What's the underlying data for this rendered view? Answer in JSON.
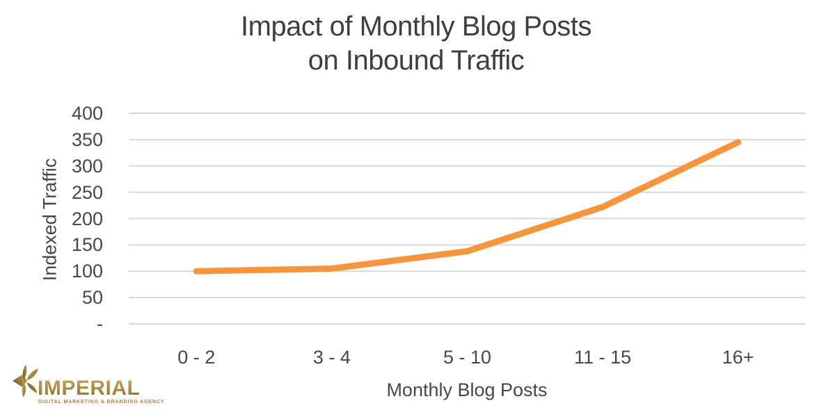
{
  "chart_data": {
    "type": "line",
    "title_line1": "Impact of Monthly Blog Posts",
    "title_line2": "on Inbound Traffic",
    "categories": [
      "0 - 2",
      "3 - 4",
      "5 - 10",
      "11 - 15",
      "16+"
    ],
    "series": [
      {
        "name": "Indexed Traffic",
        "values": [
          100,
          105,
          138,
          222,
          345
        ],
        "color": "#F6953C"
      }
    ],
    "xlabel": "Monthly Blog Posts",
    "ylabel": "Indexed Traffic",
    "ylim": [
      0,
      400
    ],
    "y_ticks": [
      {
        "label": "400",
        "value": 400
      },
      {
        "label": "350",
        "value": 350
      },
      {
        "label": "300",
        "value": 300
      },
      {
        "label": "250",
        "value": 250
      },
      {
        "label": "200",
        "value": 200
      },
      {
        "label": "150",
        "value": 150
      },
      {
        "label": "100",
        "value": 100
      },
      {
        "label": "50",
        "value": 50
      },
      {
        "label": "-",
        "value": 0
      }
    ],
    "grid": true,
    "gridline_color": "#d9d9d9",
    "legend_position": "none",
    "line_width": 9
  },
  "logo": {
    "name": "IMPERIAL",
    "tagline": "DIGITAL MARKETING & BRANDING AGENCY",
    "gold_light": "#c9ab62",
    "gold_dark": "#8a6b2e"
  }
}
